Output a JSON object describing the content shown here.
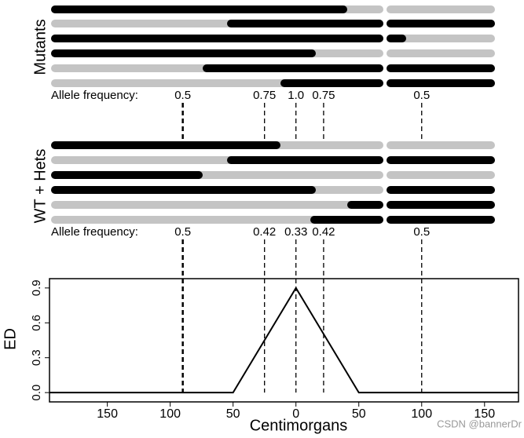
{
  "panels": {
    "mutants_label": "Mutants",
    "wt_label": "WT + Hets"
  },
  "allele_frequency": {
    "label": "Allele frequency:",
    "mutants": [
      "0.5",
      "0.75",
      "1.0",
      "0.75",
      "0.5"
    ],
    "wt_hets": [
      "0.5",
      "0.42",
      "0.33",
      "0.42",
      "0.5"
    ]
  },
  "chart_data": {
    "type": "line",
    "x_label": "Centimorgans",
    "y_label": "ED",
    "x": [
      -196,
      -50,
      0,
      50,
      177
    ],
    "values": [
      0,
      0,
      0.9,
      0,
      0
    ],
    "color": "#000000",
    "markers": [
      -90,
      -25,
      0,
      22,
      100
    ],
    "xlim": [
      -196,
      177
    ],
    "ylim": [
      -0.08,
      0.98
    ],
    "xticks": [
      {
        "value": -150,
        "label": "150"
      },
      {
        "value": -100,
        "label": "100"
      },
      {
        "value": -50,
        "label": "50"
      },
      0,
      50,
      100,
      150
    ],
    "yticks": [
      {
        "value": 0,
        "label": "0.0"
      },
      0.3,
      0.6,
      0.9
    ]
  },
  "watermark": "CSDN @bannerDr"
}
